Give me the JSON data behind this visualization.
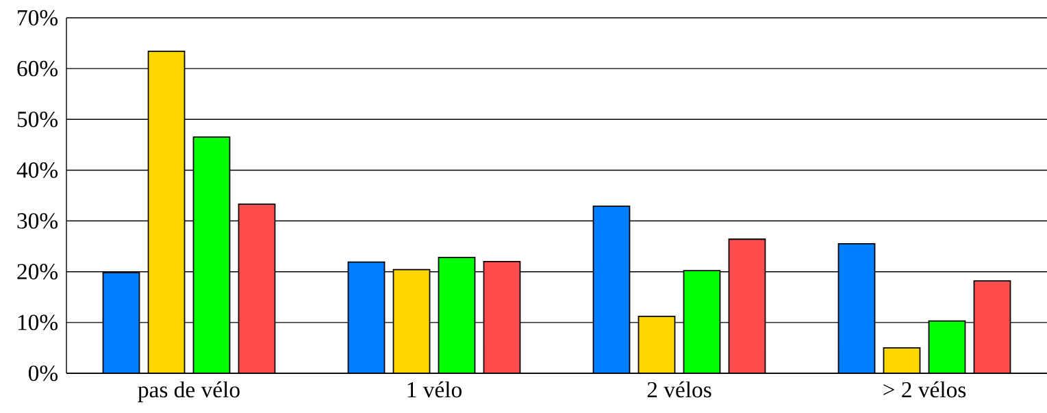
{
  "chart_data": {
    "type": "bar",
    "categories": [
      "pas de vélo",
      "1 vélo",
      "2 vélos",
      "> 2 vélos"
    ],
    "series": [
      {
        "color": "#0080ff",
        "values": [
          19.8,
          21.9,
          32.9,
          25.5
        ]
      },
      {
        "color": "#ffd700",
        "values": [
          63.4,
          20.4,
          11.2,
          5.0
        ]
      },
      {
        "color": "#00ff00",
        "values": [
          46.5,
          22.8,
          20.2,
          10.3
        ]
      },
      {
        "color": "#ff4d4d",
        "values": [
          33.3,
          22.0,
          26.4,
          18.2
        ]
      }
    ],
    "ylim": [
      0,
      70
    ],
    "yticks": [
      {
        "value": 0,
        "label": "0%"
      },
      {
        "value": 10,
        "label": "10%"
      },
      {
        "value": 20,
        "label": "20%"
      },
      {
        "value": 30,
        "label": "30%"
      },
      {
        "value": 40,
        "label": "40%"
      },
      {
        "value": 50,
        "label": "50%"
      },
      {
        "value": 60,
        "label": "60%"
      },
      {
        "value": 70,
        "label": "70%"
      }
    ],
    "grid": "y"
  }
}
